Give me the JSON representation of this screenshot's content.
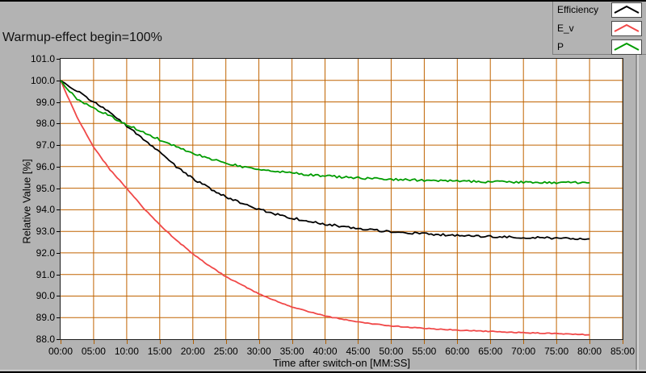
{
  "window": {
    "background_color": "#B3B3B3"
  },
  "chart_data": {
    "type": "line",
    "title": "Warmup-effect begin=100%",
    "xlabel": "Time after switch-on [MM:SS]",
    "ylabel": "Relative Value [%]",
    "x_unit": "minutes",
    "xlim_minutes": [
      0,
      85
    ],
    "ylim": [
      88.0,
      101.0
    ],
    "grid": true,
    "grid_color": "#C06300",
    "tick_color": "#B25F00",
    "plot_bg": "#FFFFFF",
    "legend_position": "top-right",
    "x_ticks": [
      "00:00",
      "05:00",
      "10:00",
      "15:00",
      "20:00",
      "25:00",
      "30:00",
      "35:00",
      "40:00",
      "45:00",
      "50:00",
      "55:00",
      "60:00",
      "65:00",
      "70:00",
      "75:00",
      "80:00",
      "85:00"
    ],
    "y_ticks": [
      "101.0",
      "100.0",
      "99.0",
      "98.0",
      "97.0",
      "96.0",
      "95.0",
      "94.0",
      "93.0",
      "92.0",
      "91.0",
      "90.0",
      "89.0",
      "88.0"
    ],
    "x_minutes": [
      0,
      1,
      2.5,
      5,
      7.5,
      10,
      12.5,
      15,
      17.5,
      20,
      22.5,
      25,
      27.5,
      30,
      32.5,
      35,
      37.5,
      40,
      42.5,
      45,
      47.5,
      50,
      52.5,
      55,
      57.5,
      60,
      62.5,
      65,
      67.5,
      70,
      72.5,
      75,
      77.5,
      80
    ],
    "series": [
      {
        "name": "Efficiency",
        "color": "#000000",
        "noise": 0.05,
        "values": [
          100,
          99.8,
          99.5,
          99.0,
          98.5,
          97.9,
          97.3,
          96.65,
          96.0,
          95.45,
          95.0,
          94.6,
          94.3,
          94.02,
          93.8,
          93.62,
          93.47,
          93.34,
          93.23,
          93.13,
          93.05,
          92.98,
          92.93,
          92.89,
          92.85,
          92.81,
          92.78,
          92.76,
          92.74,
          92.72,
          92.7,
          92.68,
          92.67,
          92.65
        ]
      },
      {
        "name": "E_v",
        "color": "#F04848",
        "noise": 0.018,
        "values": [
          100,
          99.3,
          98.3,
          96.9,
          95.85,
          95.0,
          94.1,
          93.3,
          92.6,
          91.95,
          91.4,
          90.9,
          90.5,
          90.1,
          89.78,
          89.5,
          89.28,
          89.08,
          88.93,
          88.8,
          88.7,
          88.62,
          88.55,
          88.5,
          88.46,
          88.42,
          88.39,
          88.36,
          88.33,
          88.3,
          88.28,
          88.26,
          88.23,
          88.2
        ]
      },
      {
        "name": "P",
        "color": "#009C00",
        "noise": 0.05,
        "values": [
          100,
          99.6,
          99.15,
          98.7,
          98.35,
          97.95,
          97.6,
          97.25,
          96.92,
          96.62,
          96.37,
          96.17,
          96.0,
          95.88,
          95.78,
          95.7,
          95.63,
          95.57,
          95.52,
          95.48,
          95.44,
          95.41,
          95.39,
          95.37,
          95.35,
          95.33,
          95.31,
          95.3,
          95.29,
          95.28,
          95.27,
          95.26,
          95.26,
          95.25
        ]
      }
    ]
  }
}
